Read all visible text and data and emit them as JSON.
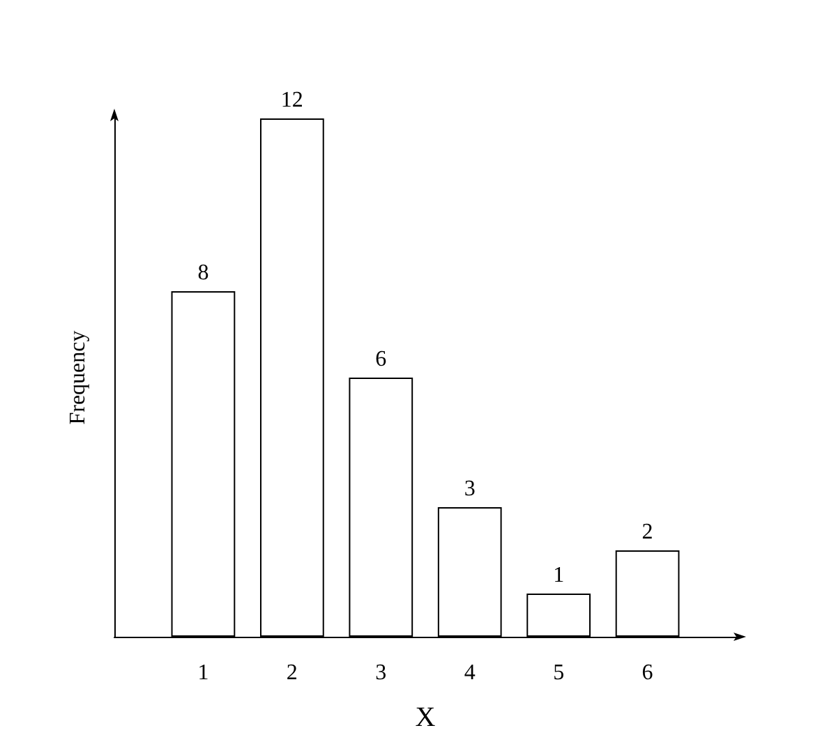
{
  "chart_data": {
    "type": "bar",
    "x": [
      1,
      2,
      3,
      4,
      5,
      6
    ],
    "values": [
      8,
      12,
      6,
      3,
      1,
      2
    ],
    "color": "#ffffff",
    "xlim": [
      0,
      7
    ],
    "xticks": [
      1,
      2,
      3,
      4,
      5,
      6
    ],
    "xlabel": "X",
    "ylabel": "Frequency",
    "data_labels": true,
    "tick_labels": "x",
    "grid": false
  }
}
